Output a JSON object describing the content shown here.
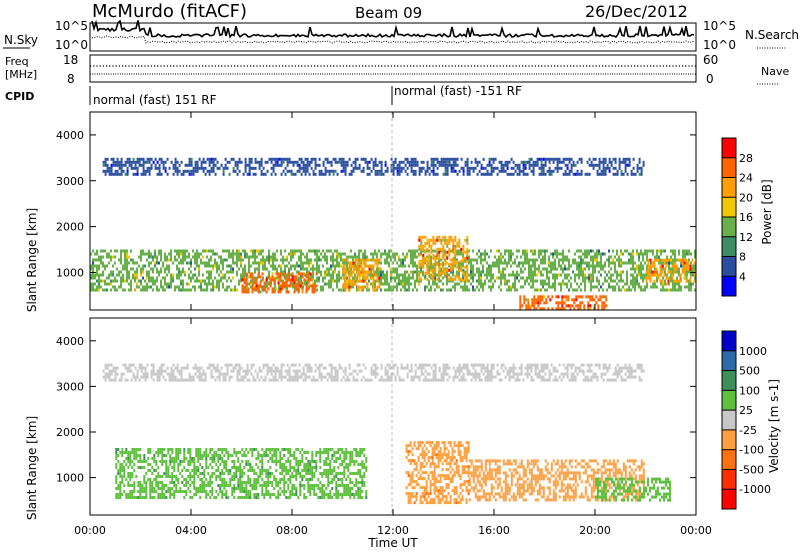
{
  "header": {
    "station": "McMurdo (fitACF)",
    "beam": "Beam 09",
    "date": "26/Dec/2012"
  },
  "top_panels": {
    "nsky_label": "N.Sky",
    "nsky_ticks": [
      "10^5",
      "10^0"
    ],
    "nsearch_label": "N.Search",
    "nsearch_ticks": [
      "10^5",
      "10^0"
    ],
    "freq_label_line1": "Freq",
    "freq_label_line2": "[MHz]",
    "freq_ticks": [
      "18",
      "8"
    ],
    "nave_label": "Nave",
    "nave_ticks": [
      "60",
      "0"
    ],
    "cpid_label": "CPID",
    "cpid_segments": [
      {
        "label": "normal (fast) 151 RF",
        "start_hour": 0
      },
      {
        "label": "normal (fast) -151 RF",
        "start_hour": 12
      }
    ]
  },
  "colors": {
    "power_scale": [
      "#0000ff",
      "#2a4fa0",
      "#3c8c64",
      "#68b04a",
      "#f0c800",
      "#ffa000",
      "#ff6400",
      "#ff0000"
    ],
    "velocity_scale": [
      "#0000c8",
      "#2e6aa8",
      "#3e8f5a",
      "#5fc040",
      "#c8c8c8",
      "#ffa040",
      "#ff7010",
      "#ff3000",
      "#ff0000"
    ]
  },
  "chart_data": [
    {
      "type": "heatmap",
      "title": "",
      "xlabel": "",
      "ylabel": "Slant Range [km]",
      "xlim": [
        0,
        24
      ],
      "ylim": [
        180,
        4500
      ],
      "x_tick_labels": [
        "00:00",
        "04:00",
        "08:00",
        "12:00",
        "16:00",
        "20:00",
        "00:00"
      ],
      "y_tick_labels": [
        "1000",
        "2000",
        "3000",
        "4000"
      ],
      "colorbar_label": "Power [dB]",
      "colorbar_ticks": [
        "4",
        "8",
        "12",
        "16",
        "20",
        "24",
        "28"
      ],
      "colorbar_range": [
        0,
        32
      ],
      "echo_regions": [
        {
          "hours": [
            0,
            24
          ],
          "range_km": [
            600,
            1500
          ],
          "level": 14
        },
        {
          "hours": [
            6,
            9
          ],
          "range_km": [
            550,
            1000
          ],
          "level": 24
        },
        {
          "hours": [
            10,
            11.5
          ],
          "range_km": [
            600,
            1300
          ],
          "level": 22
        },
        {
          "hours": [
            13,
            15
          ],
          "range_km": [
            800,
            1800
          ],
          "level": 22
        },
        {
          "hours": [
            17,
            20.5
          ],
          "range_km": [
            180,
            500
          ],
          "level": 26
        },
        {
          "hours": [
            22,
            24
          ],
          "range_km": [
            800,
            1300
          ],
          "level": 22
        },
        {
          "hours": [
            0.5,
            22
          ],
          "range_km": [
            3100,
            3500
          ],
          "level": 6
        }
      ]
    },
    {
      "type": "heatmap",
      "title": "",
      "xlabel": "Time UT",
      "ylabel": "Slant Range [km]",
      "xlim": [
        0,
        24
      ],
      "ylim": [
        180,
        4500
      ],
      "x_tick_labels": [
        "00:00",
        "04:00",
        "08:00",
        "12:00",
        "16:00",
        "20:00",
        "00:00"
      ],
      "y_tick_labels": [
        "1000",
        "2000",
        "3000",
        "4000"
      ],
      "colorbar_label": "Velocity [m s-1]",
      "colorbar_ticks": [
        "1000",
        "500",
        "100",
        "25",
        "-25",
        "-100",
        "-500",
        "-1000"
      ],
      "colorbar_range": [
        -1000,
        1000
      ],
      "echo_regions": [
        {
          "hours": [
            1,
            11
          ],
          "range_km": [
            550,
            1650
          ],
          "level": 300
        },
        {
          "hours": [
            12.5,
            15
          ],
          "range_km": [
            400,
            1800
          ],
          "level": -300
        },
        {
          "hours": [
            15,
            22
          ],
          "range_km": [
            500,
            1400
          ],
          "level": -200
        },
        {
          "hours": [
            20,
            23
          ],
          "range_km": [
            500,
            1000
          ],
          "level": 200
        },
        {
          "hours": [
            0.5,
            22
          ],
          "range_km": [
            3100,
            3500
          ],
          "level": 0
        }
      ]
    }
  ]
}
